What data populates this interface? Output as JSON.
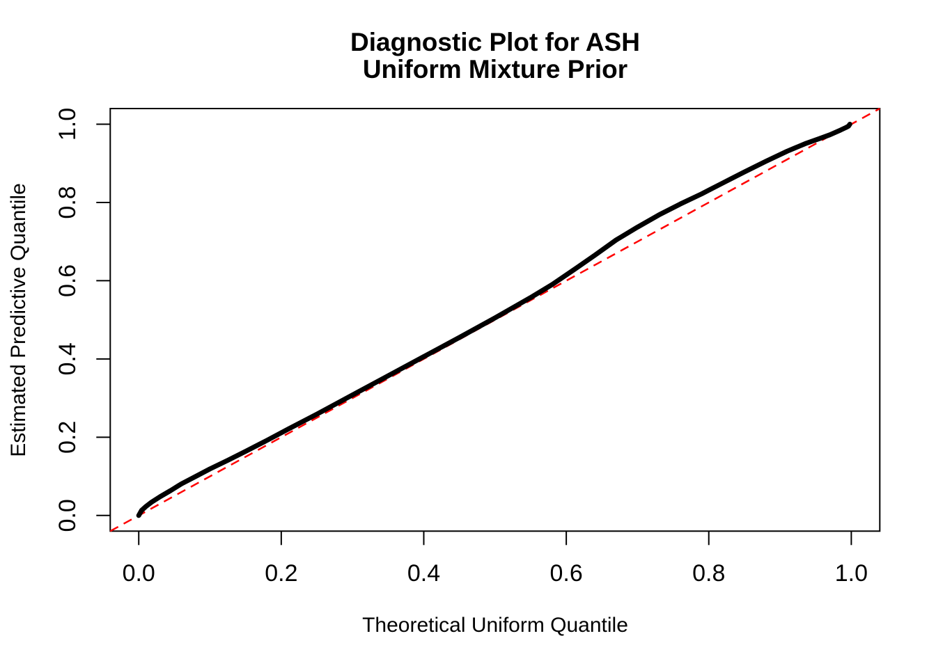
{
  "figure": {
    "background": "#FFFFFF",
    "text_color": "#000000"
  },
  "chart_data": {
    "type": "line",
    "title": "Diagnostic Plot for ASH\nUniform Mixture Prior",
    "title_lines": [
      "Diagnostic Plot for ASH",
      "Uniform Mixture Prior"
    ],
    "xlabel": "Theoretical Uniform Quantile",
    "ylabel": "Estimated Predictive Quantile",
    "xlim": [
      -0.04,
      1.04
    ],
    "ylim": [
      -0.04,
      1.04
    ],
    "x_ticks": [
      0.0,
      0.2,
      0.4,
      0.6,
      0.8,
      1.0
    ],
    "x_tick_labels": [
      "0.0",
      "0.2",
      "0.4",
      "0.6",
      "0.8",
      "1.0"
    ],
    "y_ticks": [
      0.0,
      0.2,
      0.4,
      0.6,
      0.8,
      1.0
    ],
    "y_tick_labels": [
      "0.0",
      "0.2",
      "0.4",
      "0.6",
      "0.8",
      "1.0"
    ],
    "grid": false,
    "legend": null,
    "series": [
      {
        "name": "ash-estimated-vs-theoretical-quantile-curve",
        "color": "#000000",
        "line_width": 7,
        "dash": null,
        "points": [
          [
            0.0,
            0.0
          ],
          [
            0.004,
            0.013
          ],
          [
            0.01,
            0.023
          ],
          [
            0.018,
            0.034
          ],
          [
            0.03,
            0.048
          ],
          [
            0.045,
            0.064
          ],
          [
            0.06,
            0.081
          ],
          [
            0.08,
            0.1
          ],
          [
            0.1,
            0.119
          ],
          [
            0.125,
            0.141
          ],
          [
            0.15,
            0.164
          ],
          [
            0.18,
            0.192
          ],
          [
            0.21,
            0.221
          ],
          [
            0.25,
            0.259
          ],
          [
            0.3,
            0.308
          ],
          [
            0.35,
            0.357
          ],
          [
            0.4,
            0.406
          ],
          [
            0.45,
            0.455
          ],
          [
            0.5,
            0.505
          ],
          [
            0.55,
            0.557
          ],
          [
            0.58,
            0.59
          ],
          [
            0.61,
            0.627
          ],
          [
            0.64,
            0.665
          ],
          [
            0.67,
            0.704
          ],
          [
            0.7,
            0.737
          ],
          [
            0.73,
            0.768
          ],
          [
            0.76,
            0.796
          ],
          [
            0.79,
            0.822
          ],
          [
            0.82,
            0.85
          ],
          [
            0.85,
            0.878
          ],
          [
            0.88,
            0.905
          ],
          [
            0.91,
            0.931
          ],
          [
            0.935,
            0.95
          ],
          [
            0.955,
            0.963
          ],
          [
            0.97,
            0.973
          ],
          [
            0.985,
            0.985
          ],
          [
            0.993,
            0.992
          ],
          [
            0.996,
            0.995
          ],
          [
            0.998,
            1.0
          ]
        ]
      },
      {
        "name": "identity-reference-line",
        "color": "#FF0000",
        "line_width": 2.5,
        "dash": "13 9",
        "points": [
          [
            -0.04,
            -0.04
          ],
          [
            1.04,
            1.04
          ]
        ]
      }
    ]
  }
}
